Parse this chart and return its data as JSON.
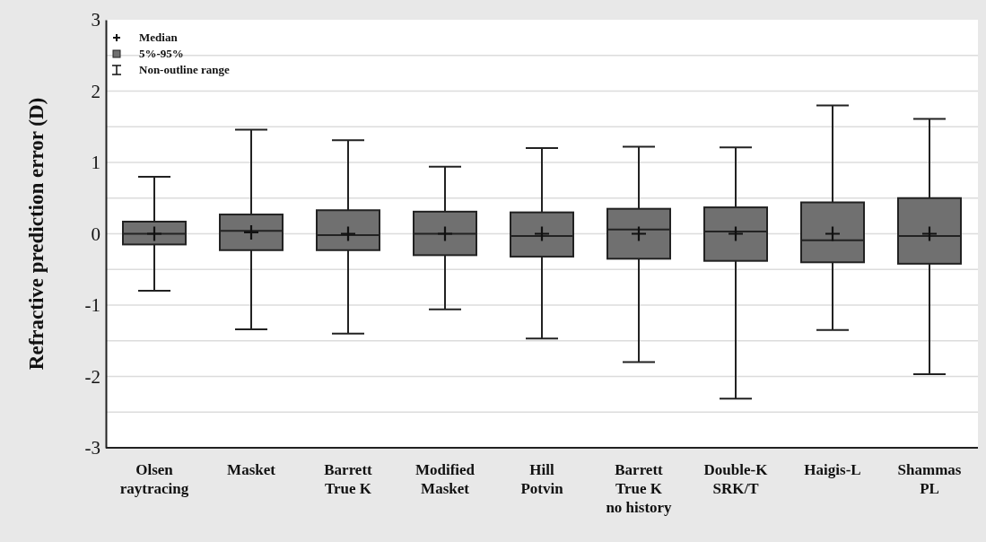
{
  "chart_data": {
    "type": "box",
    "ylabel": "Refractive prediction error (D)",
    "categories": [
      "Olsen\nraytracing",
      "Masket",
      "Barrett\nTrue K",
      "Modified\nMasket",
      "Hill\nPotvin",
      "Barrett\nTrue K\nno history",
      "Double-K\nSRK/T",
      "Haigis-L",
      "Shammas\nPL"
    ],
    "boxes": [
      {
        "low": -0.8,
        "q1": -0.15,
        "median": 0,
        "q3": 0.17,
        "high": 0.8,
        "mean": 0
      },
      {
        "low": -1.34,
        "q1": -0.23,
        "median": 0.02,
        "q3": 0.27,
        "high": 1.46,
        "mean": 0.04
      },
      {
        "low": -1.4,
        "q1": -0.23,
        "median": 0,
        "q3": 0.33,
        "high": 1.31,
        "mean": -0.02
      },
      {
        "low": -1.06,
        "q1": -0.3,
        "median": 0,
        "q3": 0.31,
        "high": 0.94,
        "mean": 0
      },
      {
        "low": -1.47,
        "q1": -0.32,
        "median": 0,
        "q3": 0.3,
        "high": 1.2,
        "mean": -0.03
      },
      {
        "low": -1.8,
        "q1": -0.35,
        "median": 0,
        "q3": 0.35,
        "high": 1.22,
        "mean": 0.06
      },
      {
        "low": -2.31,
        "q1": -0.38,
        "median": 0,
        "q3": 0.37,
        "high": 1.21,
        "mean": 0.03
      },
      {
        "low": -1.35,
        "q1": -0.4,
        "median": 0,
        "q3": 0.44,
        "high": 1.8,
        "mean": -0.09
      },
      {
        "low": -1.97,
        "q1": -0.42,
        "median": 0,
        "q3": 0.5,
        "high": 1.61,
        "mean": -0.03
      }
    ],
    "color": "#707070",
    "ylim": [
      -3,
      3
    ],
    "yticks": [
      -3,
      -2,
      -1,
      0,
      1,
      2,
      3
    ],
    "grid": true,
    "annotations": [
      "Median",
      "5%-95%",
      "Non-outline range"
    ]
  }
}
